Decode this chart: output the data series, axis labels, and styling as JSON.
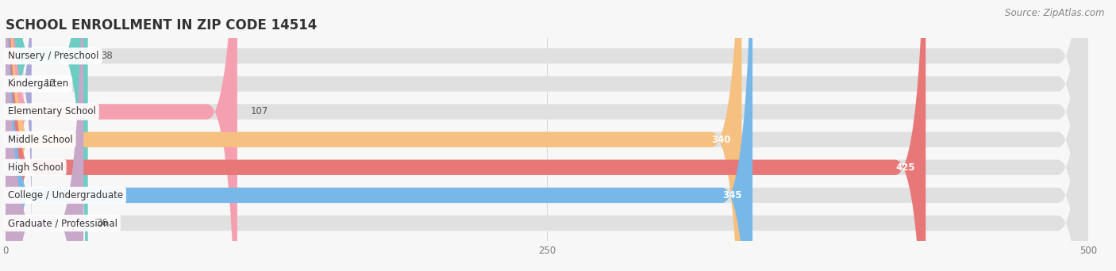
{
  "title": "SCHOOL ENROLLMENT IN ZIP CODE 14514",
  "source": "Source: ZipAtlas.com",
  "categories": [
    "Nursery / Preschool",
    "Kindergarten",
    "Elementary School",
    "Middle School",
    "High School",
    "College / Undergraduate",
    "Graduate / Professional"
  ],
  "values": [
    38,
    12,
    107,
    340,
    425,
    345,
    36
  ],
  "colors": [
    "#6dcdc4",
    "#a8a8d8",
    "#f4a0b0",
    "#f5c080",
    "#e87878",
    "#78b8e8",
    "#c8a8c8"
  ],
  "xlim": [
    0,
    500
  ],
  "xticks": [
    0,
    250,
    500
  ],
  "background_color": "#f7f7f7",
  "bar_bg_color": "#e0e0e0",
  "title_fontsize": 12,
  "label_fontsize": 8.5,
  "value_fontsize": 8.5,
  "source_fontsize": 8.5
}
